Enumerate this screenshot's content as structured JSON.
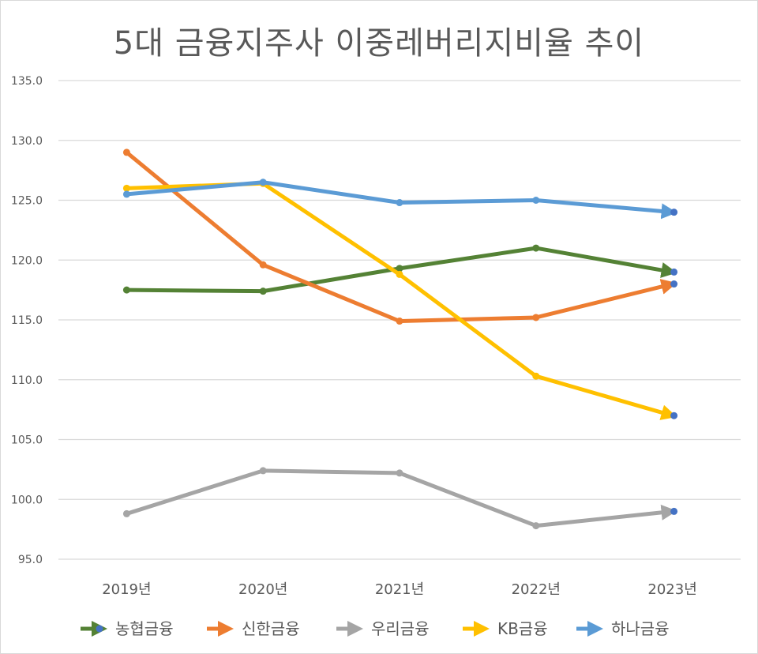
{
  "chart_data": {
    "type": "line",
    "title": "5대 금융지주사 이중레버리지비율 추이",
    "categories": [
      "2019년",
      "2020년",
      "2021년",
      "2022년",
      "2023년"
    ],
    "ylim": [
      95.0,
      135.0
    ],
    "yticks": [
      "135.0",
      "130.0",
      "125.0",
      "120.0",
      "115.0",
      "110.0",
      "105.0",
      "100.0",
      "95.0"
    ],
    "grid": true,
    "legend": "bottom",
    "series": [
      {
        "name": "농협금융",
        "color": "#548235",
        "values": [
          117.5,
          117.4,
          119.3,
          121.0,
          119.0
        ]
      },
      {
        "name": "신한금융",
        "color": "#ED7D31",
        "values": [
          129.0,
          119.6,
          114.9,
          115.2,
          118.0
        ]
      },
      {
        "name": "우리금융",
        "color": "#A5A5A5",
        "values": [
          98.8,
          102.4,
          102.2,
          97.8,
          99.0
        ]
      },
      {
        "name": "KB금융",
        "color": "#FFC000",
        "values": [
          126.0,
          126.4,
          118.8,
          110.3,
          107.0
        ]
      },
      {
        "name": "하나금융",
        "color": "#5B9BD5",
        "values": [
          125.5,
          126.5,
          124.8,
          125.0,
          124.0
        ]
      }
    ],
    "endpoint_marker_color": "#4472C4"
  }
}
